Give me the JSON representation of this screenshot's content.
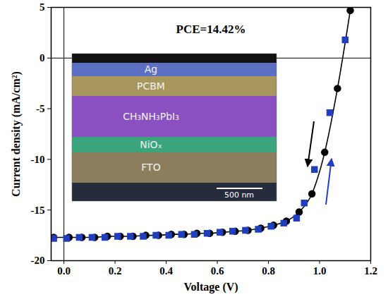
{
  "chart_data": {
    "type": "line",
    "xlabel": "Voltage (V)",
    "ylabel": "Current density (mA/cm²)",
    "xlim": [
      -0.05,
      1.2
    ],
    "ylim": [
      -20,
      5
    ],
    "xticks": [
      {
        "value": 0,
        "label": "0.0"
      },
      0.2,
      0.4,
      0.6,
      0.8,
      {
        "value": 1,
        "label": "1.0"
      },
      1.2
    ],
    "yticks": [
      -20,
      -15,
      -10,
      -5,
      0,
      5
    ],
    "grid": false,
    "annotations": [
      {
        "text": "PCE=14.42%"
      }
    ],
    "inset": {
      "layers": [
        {
          "label": "Ag",
          "color": "#5b6fc4"
        },
        {
          "label": "PCBM",
          "color": "#a8975c"
        },
        {
          "label": "CH₃NH₃PbI₃",
          "color": "#8a4fc0"
        },
        {
          "label": "NiOₓ",
          "color": "#3aa57c"
        },
        {
          "label": "FTO",
          "color": "#8c7e5c"
        }
      ],
      "scale_bar": "500 nm"
    },
    "series": [
      {
        "color": "#000000",
        "marker": "circle",
        "line_style": "solid",
        "x": [
          -0.04,
          0.02,
          0.07,
          0.12,
          0.17,
          0.22,
          0.27,
          0.32,
          0.37,
          0.42,
          0.47,
          0.52,
          0.57,
          0.62,
          0.67,
          0.72,
          0.77,
          0.82,
          0.87,
          0.92,
          0.97,
          1.02,
          1.07,
          1.12
        ],
        "values": [
          -17.7,
          -17.7,
          -17.7,
          -17.7,
          -17.6,
          -17.6,
          -17.6,
          -17.5,
          -17.5,
          -17.4,
          -17.4,
          -17.3,
          -17.3,
          -17.2,
          -17.1,
          -17.0,
          -16.8,
          -16.5,
          -16.1,
          -15.2,
          -13.4,
          -9.3,
          -3.0,
          4.7
        ]
      },
      {
        "color": "#1f3fbf",
        "marker": "square",
        "line_style": "none",
        "x": [
          -0.04,
          0.01,
          0.06,
          0.11,
          0.16,
          0.21,
          0.26,
          0.31,
          0.36,
          0.41,
          0.46,
          0.51,
          0.56,
          0.61,
          0.66,
          0.71,
          0.76,
          0.81,
          0.86,
          0.91,
          0.94,
          0.98,
          1.04,
          1.1
        ],
        "values": [
          -17.8,
          -17.8,
          -17.7,
          -17.7,
          -17.7,
          -17.6,
          -17.6,
          -17.6,
          -17.5,
          -17.5,
          -17.4,
          -17.4,
          -17.3,
          -17.2,
          -17.1,
          -17.0,
          -16.9,
          -16.6,
          -16.3,
          -15.8,
          -14.3,
          -11.0,
          -5.4,
          1.8
        ]
      }
    ]
  }
}
